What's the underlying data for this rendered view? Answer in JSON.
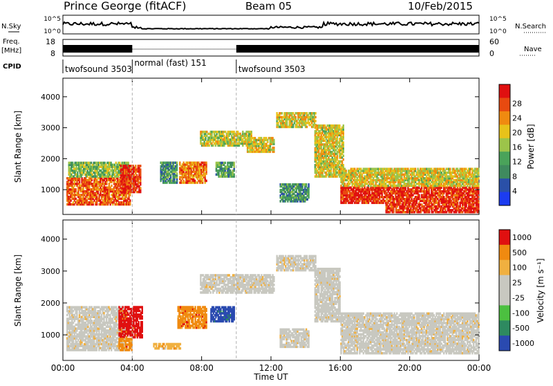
{
  "header": {
    "station": "Prince George (fitACF)",
    "beam": "Beam 05",
    "date": "10/Feb/2015"
  },
  "summary": {
    "nsky_label": "N.Sky",
    "nsearch_label": "N.Search",
    "freq_label_1": "Freq.",
    "freq_label_2": "[MHz]",
    "nave_label": "Nave",
    "cpid_label": "CPID",
    "nsky_ticks": [
      "10^5",
      "10^0"
    ],
    "nsearch_ticks": [
      "10^5",
      "10^0"
    ],
    "freq_ticks": [
      "18",
      "8"
    ],
    "nave_ticks": [
      "60",
      "0"
    ]
  },
  "cpid_segments": [
    {
      "label": "twofsound 3503",
      "start_h": 0,
      "end_h": 4
    },
    {
      "label": "normal (fast) 151",
      "start_h": 4,
      "end_h": 10
    },
    {
      "label": "twofsound 3503",
      "start_h": 10,
      "end_h": 24
    }
  ],
  "colors": {
    "power": [
      "#1c3cf0",
      "#2a50a8",
      "#3f8a5e",
      "#4aa35a",
      "#9cc44a",
      "#e8c21a",
      "#f08a10",
      "#e84a10",
      "#e01010"
    ],
    "velocity": [
      "#e01010",
      "#f08a10",
      "#f0b040",
      "#c8c8c0",
      "#c8c8c0",
      "#4cc040",
      "#2e8a60",
      "#2a4ab0"
    ],
    "grey": "#c8c8c0"
  },
  "chart_data": [
    {
      "type": "heatmap",
      "name": "power",
      "ylabel": "Slant Range [km]",
      "yticks": [
        "1000",
        "2000",
        "3000",
        "4000"
      ],
      "ylim": [
        200,
        4600
      ],
      "colorbar_label": "Power [dB]",
      "colorbar_ticks": [
        "4",
        "8",
        "12",
        "16",
        "20",
        "24",
        "28"
      ],
      "regions": [
        {
          "t0": 0.2,
          "t1": 3.9,
          "r0": 500,
          "r1": 1400,
          "level": 0.85
        },
        {
          "t0": 0.3,
          "t1": 3.8,
          "r0": 1400,
          "r1": 1900,
          "level": 0.45
        },
        {
          "t0": 3.3,
          "t1": 4.5,
          "r0": 900,
          "r1": 1800,
          "level": 0.95
        },
        {
          "t0": 5.6,
          "t1": 6.6,
          "r0": 1200,
          "r1": 1900,
          "level": 0.3
        },
        {
          "t0": 6.7,
          "t1": 8.3,
          "r0": 1200,
          "r1": 1900,
          "level": 0.8
        },
        {
          "t0": 8.8,
          "t1": 9.9,
          "r0": 1400,
          "r1": 1900,
          "level": 0.35
        },
        {
          "t0": 7.9,
          "t1": 10.9,
          "r0": 2400,
          "r1": 2900,
          "level": 0.55
        },
        {
          "t0": 10.6,
          "t1": 12.2,
          "r0": 2200,
          "r1": 2700,
          "level": 0.6
        },
        {
          "t0": 12.3,
          "t1": 14.6,
          "r0": 3000,
          "r1": 3500,
          "level": 0.6
        },
        {
          "t0": 14.5,
          "t1": 16.2,
          "r0": 1400,
          "r1": 3100,
          "level": 0.6
        },
        {
          "t0": 12.5,
          "t1": 14.2,
          "r0": 600,
          "r1": 1200,
          "level": 0.3
        },
        {
          "t0": 16.0,
          "t1": 24.0,
          "r0": 550,
          "r1": 1100,
          "level": 0.95
        },
        {
          "t0": 16.0,
          "t1": 24.0,
          "r0": 1100,
          "r1": 1700,
          "level": 0.6
        },
        {
          "t0": 18.6,
          "t1": 24.0,
          "r0": 250,
          "r1": 550,
          "level": 0.95
        }
      ]
    },
    {
      "type": "heatmap",
      "name": "velocity",
      "ylabel": "Slant Range [km]",
      "xlabel": "Time UT",
      "yticks": [
        "1000",
        "2000",
        "3000",
        "4000"
      ],
      "xticks": [
        "00:00",
        "04:00",
        "08:00",
        "12:00",
        "16:00",
        "20:00",
        "00:00"
      ],
      "ylim": [
        200,
        4600
      ],
      "xlim": [
        0,
        24
      ],
      "colorbar_label": "Velocity [m s⁻¹]",
      "colorbar_ticks": [
        "1000",
        "500",
        "100",
        "25",
        "-25",
        "-100",
        "-500",
        "-1000"
      ],
      "regions": [
        {
          "t0": 0.2,
          "t1": 3.6,
          "r0": 500,
          "r1": 1900,
          "level": 3
        },
        {
          "t0": 3.2,
          "t1": 4.6,
          "r0": 900,
          "r1": 1900,
          "level": 0
        },
        {
          "t0": 3.2,
          "t1": 4.0,
          "r0": 500,
          "r1": 900,
          "level": 1
        },
        {
          "t0": 6.6,
          "t1": 8.3,
          "r0": 1200,
          "r1": 1900,
          "level": 1
        },
        {
          "t0": 8.5,
          "t1": 9.9,
          "r0": 1400,
          "r1": 1900,
          "level": 7
        },
        {
          "t0": 5.2,
          "t1": 6.8,
          "r0": 550,
          "r1": 750,
          "level": 2
        },
        {
          "t0": 7.9,
          "t1": 12.2,
          "r0": 2300,
          "r1": 2900,
          "level": 3
        },
        {
          "t0": 12.3,
          "t1": 14.6,
          "r0": 3000,
          "r1": 3500,
          "level": 3
        },
        {
          "t0": 14.5,
          "t1": 16.0,
          "r0": 1400,
          "r1": 3100,
          "level": 3
        },
        {
          "t0": 12.5,
          "t1": 14.2,
          "r0": 600,
          "r1": 1200,
          "level": 3
        },
        {
          "t0": 16.0,
          "t1": 24.0,
          "r0": 400,
          "r1": 1700,
          "level": 3
        }
      ]
    }
  ]
}
